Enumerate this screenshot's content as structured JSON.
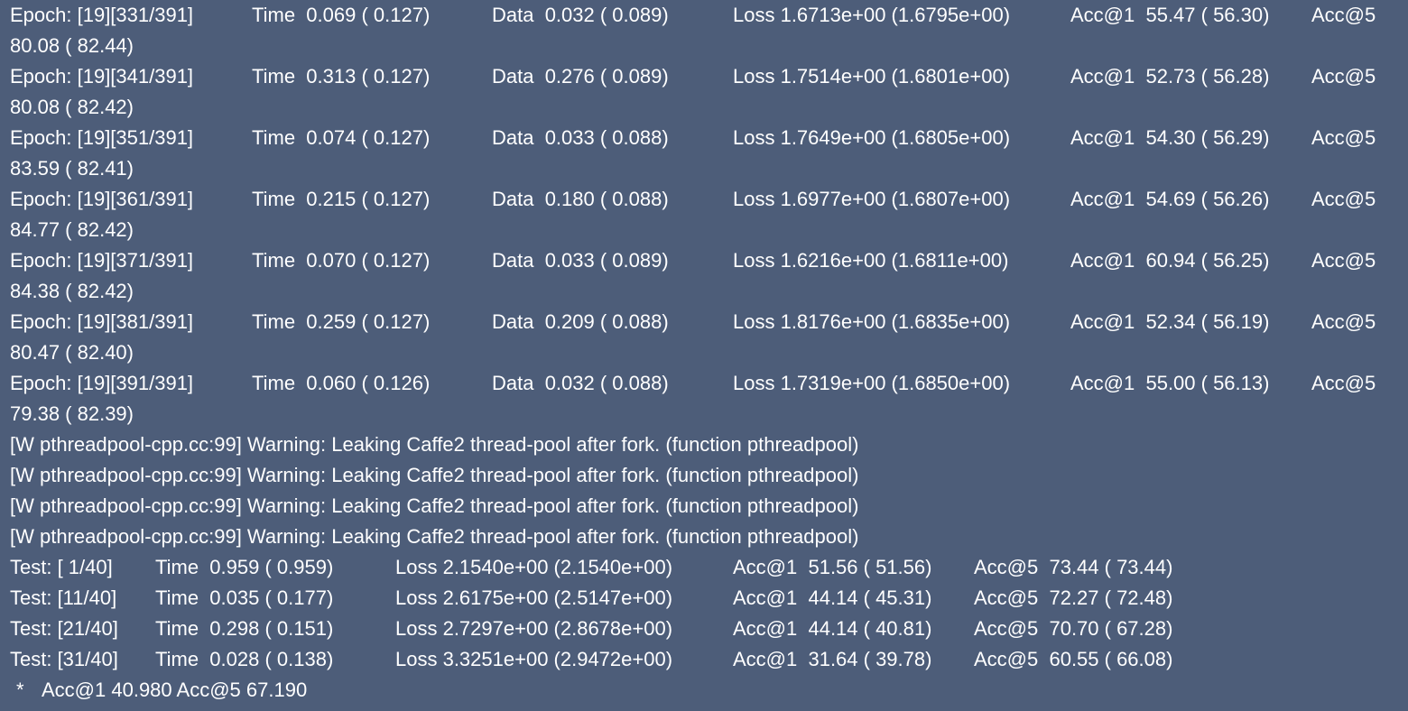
{
  "train_rows": [
    {
      "epoch": "Epoch: [19][331/391]",
      "time": "Time  0.069 ( 0.127)",
      "data": "Data  0.032 ( 0.089)",
      "loss": "Loss 1.6713e+00 (1.6795e+00)",
      "acc1": "Acc@1  55.47 ( 56.30)",
      "acc5_label": "Acc@5",
      "acc5_value": "80.08 ( 82.44)"
    },
    {
      "epoch": "Epoch: [19][341/391]",
      "time": "Time  0.313 ( 0.127)",
      "data": "Data  0.276 ( 0.089)",
      "loss": "Loss 1.7514e+00 (1.6801e+00)",
      "acc1": "Acc@1  52.73 ( 56.28)",
      "acc5_label": "Acc@5",
      "acc5_value": "80.08 ( 82.42)"
    },
    {
      "epoch": "Epoch: [19][351/391]",
      "time": "Time  0.074 ( 0.127)",
      "data": "Data  0.033 ( 0.088)",
      "loss": "Loss 1.7649e+00 (1.6805e+00)",
      "acc1": "Acc@1  54.30 ( 56.29)",
      "acc5_label": "Acc@5",
      "acc5_value": "83.59 ( 82.41)"
    },
    {
      "epoch": "Epoch: [19][361/391]",
      "time": "Time  0.215 ( 0.127)",
      "data": "Data  0.180 ( 0.088)",
      "loss": "Loss 1.6977e+00 (1.6807e+00)",
      "acc1": "Acc@1  54.69 ( 56.26)",
      "acc5_label": "Acc@5",
      "acc5_value": "84.77 ( 82.42)"
    },
    {
      "epoch": "Epoch: [19][371/391]",
      "time": "Time  0.070 ( 0.127)",
      "data": "Data  0.033 ( 0.089)",
      "loss": "Loss 1.6216e+00 (1.6811e+00)",
      "acc1": "Acc@1  60.94 ( 56.25)",
      "acc5_label": "Acc@5",
      "acc5_value": "84.38 ( 82.42)"
    },
    {
      "epoch": "Epoch: [19][381/391]",
      "time": "Time  0.259 ( 0.127)",
      "data": "Data  0.209 ( 0.088)",
      "loss": "Loss 1.8176e+00 (1.6835e+00)",
      "acc1": "Acc@1  52.34 ( 56.19)",
      "acc5_label": "Acc@5",
      "acc5_value": "80.47 ( 82.40)"
    },
    {
      "epoch": "Epoch: [19][391/391]",
      "time": "Time  0.060 ( 0.126)",
      "data": "Data  0.032 ( 0.088)",
      "loss": "Loss 1.7319e+00 (1.6850e+00)",
      "acc1": "Acc@1  55.00 ( 56.13)",
      "acc5_label": "Acc@5",
      "acc5_value": "79.38 ( 82.39)"
    }
  ],
  "warnings": [
    "[W pthreadpool-cpp.cc:99] Warning: Leaking Caffe2 thread-pool after fork. (function pthreadpool)",
    "[W pthreadpool-cpp.cc:99] Warning: Leaking Caffe2 thread-pool after fork. (function pthreadpool)",
    "[W pthreadpool-cpp.cc:99] Warning: Leaking Caffe2 thread-pool after fork. (function pthreadpool)",
    "[W pthreadpool-cpp.cc:99] Warning: Leaking Caffe2 thread-pool after fork. (function pthreadpool)"
  ],
  "test_rows": [
    {
      "test": "Test: [ 1/40]",
      "time": "Time  0.959 ( 0.959)",
      "loss": "Loss 2.1540e+00 (2.1540e+00)",
      "acc1": "Acc@1  51.56 ( 51.56)",
      "acc5": "Acc@5  73.44 ( 73.44)"
    },
    {
      "test": "Test: [11/40]",
      "time": "Time  0.035 ( 0.177)",
      "loss": "Loss 2.6175e+00 (2.5147e+00)",
      "acc1": "Acc@1  44.14 ( 45.31)",
      "acc5": "Acc@5  72.27 ( 72.48)"
    },
    {
      "test": "Test: [21/40]",
      "time": "Time  0.298 ( 0.151)",
      "loss": "Loss 2.7297e+00 (2.8678e+00)",
      "acc1": "Acc@1  44.14 ( 40.81)",
      "acc5": "Acc@5  70.70 ( 67.28)"
    },
    {
      "test": "Test: [31/40]",
      "time": "Time  0.028 ( 0.138)",
      "loss": "Loss 3.3251e+00 (2.9472e+00)",
      "acc1": "Acc@1  31.64 ( 39.78)",
      "acc5": "Acc@5  60.55 ( 66.08)"
    }
  ],
  "summary": {
    "marker": "*",
    "text": "Acc@1 40.980 Acc@5 67.190"
  },
  "colors": {
    "background": "#4d5d79",
    "text": "#ffffff"
  }
}
